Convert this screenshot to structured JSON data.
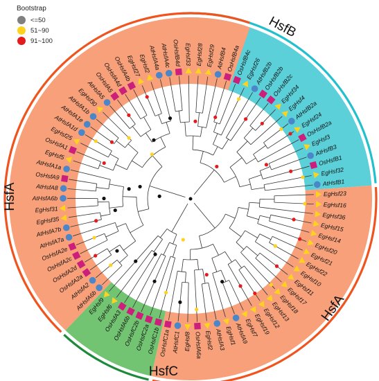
{
  "legend": {
    "title": "Bootstrap",
    "items": [
      {
        "label": "<=50",
        "color": "#808080"
      },
      {
        "label": "51~90",
        "color": "#ffd21f"
      },
      {
        "label": "91~100",
        "color": "#e41a1c"
      }
    ]
  },
  "clades": [
    {
      "id": "HsfB",
      "label": "HsfB",
      "fill": "#5bd0d8",
      "ring": "#22bfcc",
      "start": 2,
      "end": 21
    },
    {
      "id": "HsfA-right",
      "label": "HsfA",
      "fill": "#f7a07a",
      "ring": "#f0541e",
      "start": 22,
      "end": 45
    },
    {
      "id": "HsfC",
      "label": "HsfC",
      "fill": "#72c472",
      "ring": "#1c8a3a",
      "start": 46,
      "end": 52
    },
    {
      "id": "HsfA-left",
      "label": "HsfA",
      "fill": "#f7a07a",
      "ring": "#f0541e",
      "start": 53,
      "end": 87
    }
  ],
  "marker_colors": {
    "EgHsf": "#ffd21f",
    "OsHsf": "#cc1f7c",
    "AtHsf": "#4a86c8"
  },
  "leaves": [
    {
      "name": "AtHsfA4c",
      "species": "At"
    },
    {
      "name": "OsHsfB4d",
      "species": "Os"
    },
    {
      "name": "EgHsf33",
      "species": "Eg"
    },
    {
      "name": "EgHsf28",
      "species": "Eg"
    },
    {
      "name": "EgHsf29",
      "species": "Eg"
    },
    {
      "name": "AtHsfB4",
      "species": "At"
    },
    {
      "name": "OsHsfB4a",
      "species": "Os"
    },
    {
      "name": "OsHsfB4c",
      "species": "Os"
    },
    {
      "name": "EgHsf26",
      "species": "Eg"
    },
    {
      "name": "AtHsfB2b",
      "species": "At"
    },
    {
      "name": "OsHsfB2b",
      "species": "Os"
    },
    {
      "name": "OsHsfB2c",
      "species": "Os"
    },
    {
      "name": "EgHsf34",
      "species": "Eg"
    },
    {
      "name": "EgHsf4",
      "species": "Eg"
    },
    {
      "name": "AtHsfB2a",
      "species": "At"
    },
    {
      "name": "EgHsf24",
      "species": "Eg"
    },
    {
      "name": "OsHsfB2a",
      "species": "Os"
    },
    {
      "name": "EgHsf3",
      "species": "Eg"
    },
    {
      "name": "AtHsfB3",
      "species": "At"
    },
    {
      "name": "OsHsfB1",
      "species": "Os"
    },
    {
      "name": "EgHsf32",
      "species": "Eg"
    },
    {
      "name": "AtHsfB1",
      "species": "At"
    },
    {
      "name": "EgHsf23",
      "species": "Eg"
    },
    {
      "name": "EgHsf16",
      "species": "Eg"
    },
    {
      "name": "EgHsf36",
      "species": "Eg"
    },
    {
      "name": "EgHsf15",
      "species": "Eg"
    },
    {
      "name": "EgHsf14",
      "species": "Eg"
    },
    {
      "name": "EgHsf20",
      "species": "Eg"
    },
    {
      "name": "EgHsf21",
      "species": "Eg"
    },
    {
      "name": "EgHsf22",
      "species": "Eg"
    },
    {
      "name": "EgHsf10",
      "species": "Eg"
    },
    {
      "name": "EgHsf11",
      "species": "Eg"
    },
    {
      "name": "EgHsf17",
      "species": "Eg"
    },
    {
      "name": "EgHsf18",
      "species": "Eg"
    },
    {
      "name": "EgHsf13",
      "species": "Eg"
    },
    {
      "name": "EgHsf12",
      "species": "Eg"
    },
    {
      "name": "EgHsf19",
      "species": "Eg"
    },
    {
      "name": "EgHsf7",
      "species": "Eg"
    },
    {
      "name": "AtHsfA9",
      "species": "At"
    },
    {
      "name": "EgHsf1",
      "species": "Eg"
    },
    {
      "name": "AtHsfA3",
      "species": "At"
    },
    {
      "name": "EgHsf2",
      "species": "Eg"
    },
    {
      "name": "OsHsfA6a",
      "species": "Os"
    },
    {
      "name": "EgHsf8",
      "species": "Eg"
    },
    {
      "name": "AtHsfC1",
      "species": "At"
    },
    {
      "name": "OsHsfC1a",
      "species": "Os"
    },
    {
      "name": "OsHsfC1b",
      "species": "Os"
    },
    {
      "name": "OsHsfC2a",
      "species": "Os"
    },
    {
      "name": "OsHsfC2b",
      "species": "Os"
    },
    {
      "name": "OsHsfA6b",
      "species": "Os"
    },
    {
      "name": "OsHsfA3",
      "species": "Os"
    },
    {
      "name": "EgHsf6",
      "species": "Eg"
    },
    {
      "name": "EgHsf9",
      "species": "Eg"
    },
    {
      "name": "AtHsfA6b",
      "species": "At"
    },
    {
      "name": "AtHsfA2",
      "species": "At"
    },
    {
      "name": "OsHsfA2a",
      "species": "Os"
    },
    {
      "name": "OsHsfA2d",
      "species": "Os"
    },
    {
      "name": "OsHsfA2c",
      "species": "Os"
    },
    {
      "name": "OsHsfA2e",
      "species": "Os"
    },
    {
      "name": "AtHsfA7a",
      "species": "At"
    },
    {
      "name": "AtHsfA7b",
      "species": "At"
    },
    {
      "name": "EgHsf35",
      "species": "Eg"
    },
    {
      "name": "EgHsf31",
      "species": "Eg"
    },
    {
      "name": "AtHsfA6b",
      "species": "At"
    },
    {
      "name": "AtHsfA8",
      "species": "At"
    },
    {
      "name": "OsHsfA9",
      "species": "Os"
    },
    {
      "name": "AtHsfA1a",
      "species": "At"
    },
    {
      "name": "EgHsf5",
      "species": "Eg"
    },
    {
      "name": "OsHsfA1",
      "species": "Os"
    },
    {
      "name": "EgHsf25",
      "species": "Eg"
    },
    {
      "name": "AtHsfA1d",
      "species": "At"
    },
    {
      "name": "AtHsfA1e",
      "species": "At"
    },
    {
      "name": "AtHsfA1b",
      "species": "At"
    },
    {
      "name": "EgHsf30",
      "species": "Eg"
    },
    {
      "name": "AtHsfA5",
      "species": "At"
    },
    {
      "name": "OsHsfA5",
      "species": "Os"
    },
    {
      "name": "OsHsfA4d",
      "species": "Os"
    },
    {
      "name": "OsHsfA4b",
      "species": "Os"
    },
    {
      "name": "EgHsf27",
      "species": "Eg"
    },
    {
      "name": "EgHsf2",
      "species": "Eg"
    },
    {
      "name": "AtHsfA4a",
      "species": "At"
    }
  ],
  "nodes": [
    {
      "leaf": 3,
      "r": 112,
      "support": "high"
    },
    {
      "leaf": 6,
      "r": 123,
      "support": "high"
    },
    {
      "leaf": 8,
      "r": 160,
      "support": "mid"
    },
    {
      "leaf": 10,
      "r": 140,
      "support": "high"
    },
    {
      "leaf": 12,
      "r": 150,
      "support": "high"
    },
    {
      "leaf": 14,
      "r": 165,
      "support": "mid"
    },
    {
      "leaf": 15,
      "r": 172,
      "support": "high"
    },
    {
      "leaf": 17,
      "r": 120,
      "support": "high"
    },
    {
      "leaf": 19,
      "r": 150,
      "support": "high"
    },
    {
      "leaf": 20,
      "r": 165,
      "support": "mid"
    },
    {
      "leaf": 11,
      "r": 60,
      "support": "high"
    },
    {
      "leaf": 23,
      "r": 165,
      "support": "mid"
    },
    {
      "leaf": 25,
      "r": 152,
      "support": "high"
    },
    {
      "leaf": 27,
      "r": 168,
      "support": "high"
    },
    {
      "leaf": 29,
      "r": 140,
      "support": "mid"
    },
    {
      "leaf": 31,
      "r": 158,
      "support": "high"
    },
    {
      "leaf": 33,
      "r": 170,
      "support": "mid"
    },
    {
      "leaf": 35,
      "r": 165,
      "support": "high"
    },
    {
      "leaf": 36,
      "r": 145,
      "support": "high"
    },
    {
      "leaf": 38,
      "r": 128,
      "support": "low"
    },
    {
      "leaf": 40,
      "r": 112,
      "support": "high"
    },
    {
      "leaf": 42,
      "r": 160,
      "support": "mid"
    },
    {
      "leaf": 44,
      "r": 150,
      "support": "low"
    },
    {
      "leaf": 46,
      "r": 140,
      "support": "mid"
    },
    {
      "leaf": 48,
      "r": 130,
      "support": "low"
    },
    {
      "leaf": 50,
      "r": 95,
      "support": "low"
    },
    {
      "leaf": 52,
      "r": 120,
      "support": "low"
    },
    {
      "leaf": 54,
      "r": 150,
      "support": "mid"
    },
    {
      "leaf": 55,
      "r": 130,
      "support": "low"
    },
    {
      "leaf": 56,
      "r": 160,
      "support": "high"
    },
    {
      "leaf": 58,
      "r": 150,
      "support": "mid"
    },
    {
      "leaf": 60,
      "r": 140,
      "support": "high"
    },
    {
      "leaf": 61,
      "r": 110,
      "support": "low"
    },
    {
      "leaf": 63,
      "r": 125,
      "support": "low"
    },
    {
      "leaf": 65,
      "r": 90,
      "support": "low"
    },
    {
      "leaf": 66,
      "r": 75,
      "support": "low"
    },
    {
      "leaf": 68,
      "r": 135,
      "support": "high"
    },
    {
      "leaf": 70,
      "r": 160,
      "support": "mid"
    },
    {
      "leaf": 71,
      "r": 140,
      "support": "high"
    },
    {
      "leaf": 73,
      "r": 125,
      "support": "mid"
    },
    {
      "leaf": 75,
      "r": 150,
      "support": "high"
    },
    {
      "leaf": 76,
      "r": 100,
      "support": "low"
    },
    {
      "leaf": 78,
      "r": 160,
      "support": "high"
    },
    {
      "leaf": 80,
      "r": 120,
      "support": "low"
    },
    {
      "leaf": 74,
      "r": 85,
      "support": "mid"
    },
    {
      "leaf": 45,
      "r": 60,
      "support": "mid"
    },
    {
      "leaf": 64,
      "r": 45,
      "support": "low"
    }
  ]
}
